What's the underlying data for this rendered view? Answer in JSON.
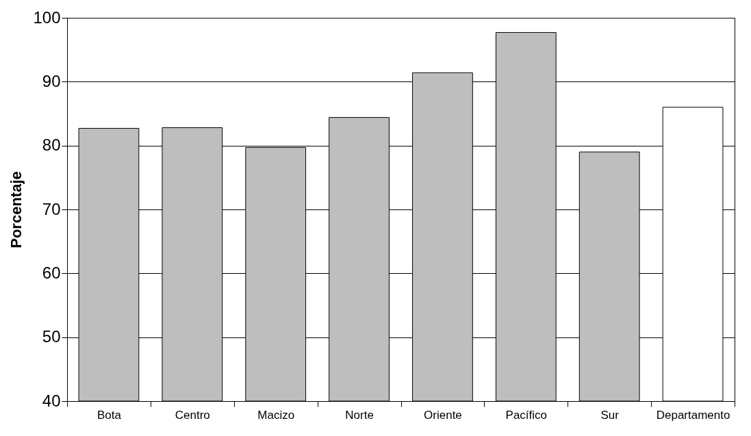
{
  "chart_data": {
    "type": "bar",
    "ylabel": "Porcentaje",
    "categories": [
      "Bota",
      "Centro",
      "Macizo",
      "Norte",
      "Oriente",
      "Pacífico",
      "Sur",
      "Departamento"
    ],
    "values": [
      82.7,
      82.8,
      79.7,
      84.4,
      91.4,
      97.7,
      79.0,
      86.0
    ],
    "colors": [
      "#bebebe",
      "#bebebe",
      "#bebebe",
      "#bebebe",
      "#bebebe",
      "#bebebe",
      "#bebebe",
      "#ffffff"
    ],
    "ylim": [
      40,
      100
    ],
    "yticks": [
      40,
      50,
      60,
      70,
      80,
      90,
      100
    ],
    "grid": "y"
  }
}
